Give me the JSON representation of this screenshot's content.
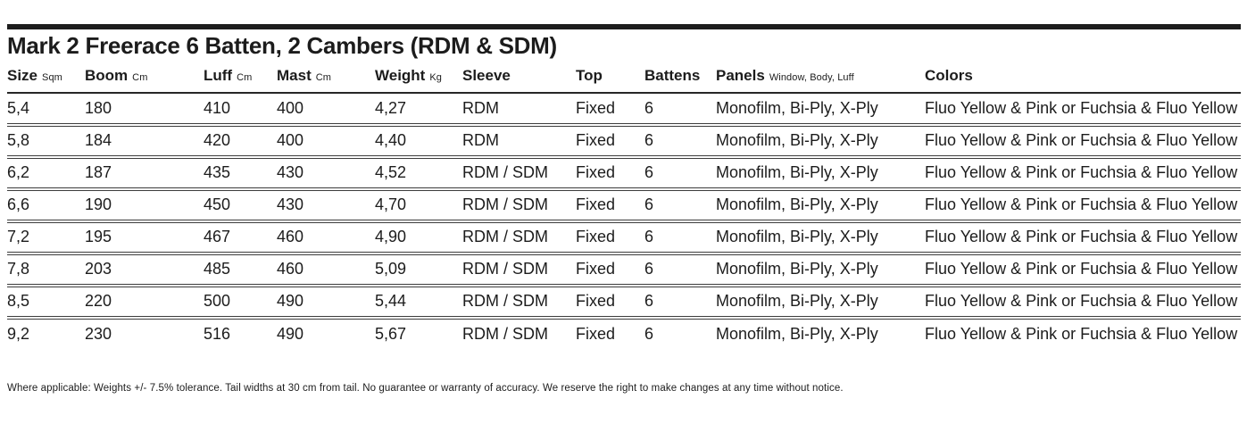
{
  "title": "Mark 2 Freerace 6 Batten, 2 Cambers (RDM & SDM)",
  "table": {
    "columns": [
      {
        "label": "Size",
        "unit": "Sqm"
      },
      {
        "label": "Boom",
        "unit": "Cm"
      },
      {
        "label": "Luff",
        "unit": "Cm"
      },
      {
        "label": "Mast",
        "unit": "Cm"
      },
      {
        "label": "Weight",
        "unit": "Kg"
      },
      {
        "label": "Sleeve",
        "unit": ""
      },
      {
        "label": "Top",
        "unit": ""
      },
      {
        "label": "Battens",
        "unit": ""
      },
      {
        "label": "Panels",
        "unit": "Window, Body, Luff"
      },
      {
        "label": "Colors",
        "unit": ""
      }
    ],
    "rows": [
      [
        "5,4",
        "180",
        "410",
        "400",
        "4,27",
        "RDM",
        "Fixed",
        "6",
        "Monofilm, Bi-Ply, X-Ply",
        "Fluo Yellow & Pink or Fuchsia & Fluo Yellow"
      ],
      [
        "5,8",
        "184",
        "420",
        "400",
        "4,40",
        "RDM",
        "Fixed",
        "6",
        "Monofilm, Bi-Ply, X-Ply",
        "Fluo Yellow & Pink or Fuchsia & Fluo Yellow"
      ],
      [
        "6,2",
        "187",
        "435",
        "430",
        "4,52",
        "RDM / SDM",
        "Fixed",
        "6",
        "Monofilm, Bi-Ply, X-Ply",
        "Fluo Yellow & Pink or Fuchsia & Fluo Yellow"
      ],
      [
        "6,6",
        "190",
        "450",
        "430",
        "4,70",
        "RDM / SDM",
        "Fixed",
        "6",
        "Monofilm, Bi-Ply, X-Ply",
        "Fluo Yellow & Pink or Fuchsia & Fluo Yellow"
      ],
      [
        "7,2",
        "195",
        "467",
        "460",
        "4,90",
        "RDM / SDM",
        "Fixed",
        "6",
        "Monofilm, Bi-Ply, X-Ply",
        "Fluo Yellow & Pink or Fuchsia & Fluo Yellow"
      ],
      [
        "7,8",
        "203",
        "485",
        "460",
        "5,09",
        "RDM / SDM",
        "Fixed",
        "6",
        "Monofilm, Bi-Ply, X-Ply",
        "Fluo Yellow & Pink or Fuchsia & Fluo Yellow"
      ],
      [
        "8,5",
        "220",
        "500",
        "490",
        "5,44",
        "RDM / SDM",
        "Fixed",
        "6",
        "Monofilm, Bi-Ply, X-Ply",
        "Fluo Yellow & Pink or Fuchsia & Fluo Yellow"
      ],
      [
        "9,2",
        "230",
        "516",
        "490",
        "5,67",
        "RDM / SDM",
        "Fixed",
        "6",
        "Monofilm, Bi-Ply, X-Ply",
        "Fluo Yellow & Pink or Fuchsia & Fluo Yellow"
      ]
    ]
  },
  "footnote": "Where applicable: Weights +/- 7.5% tolerance. Tail widths at 30 cm from tail. No guarantee or warranty of accuracy. We reserve the right to make changes at any time without notice.",
  "colors": {
    "text": "#1c1c1c",
    "rule": "#3d3d3d",
    "top_bar": "#1d1d1d",
    "background": "#ffffff"
  }
}
